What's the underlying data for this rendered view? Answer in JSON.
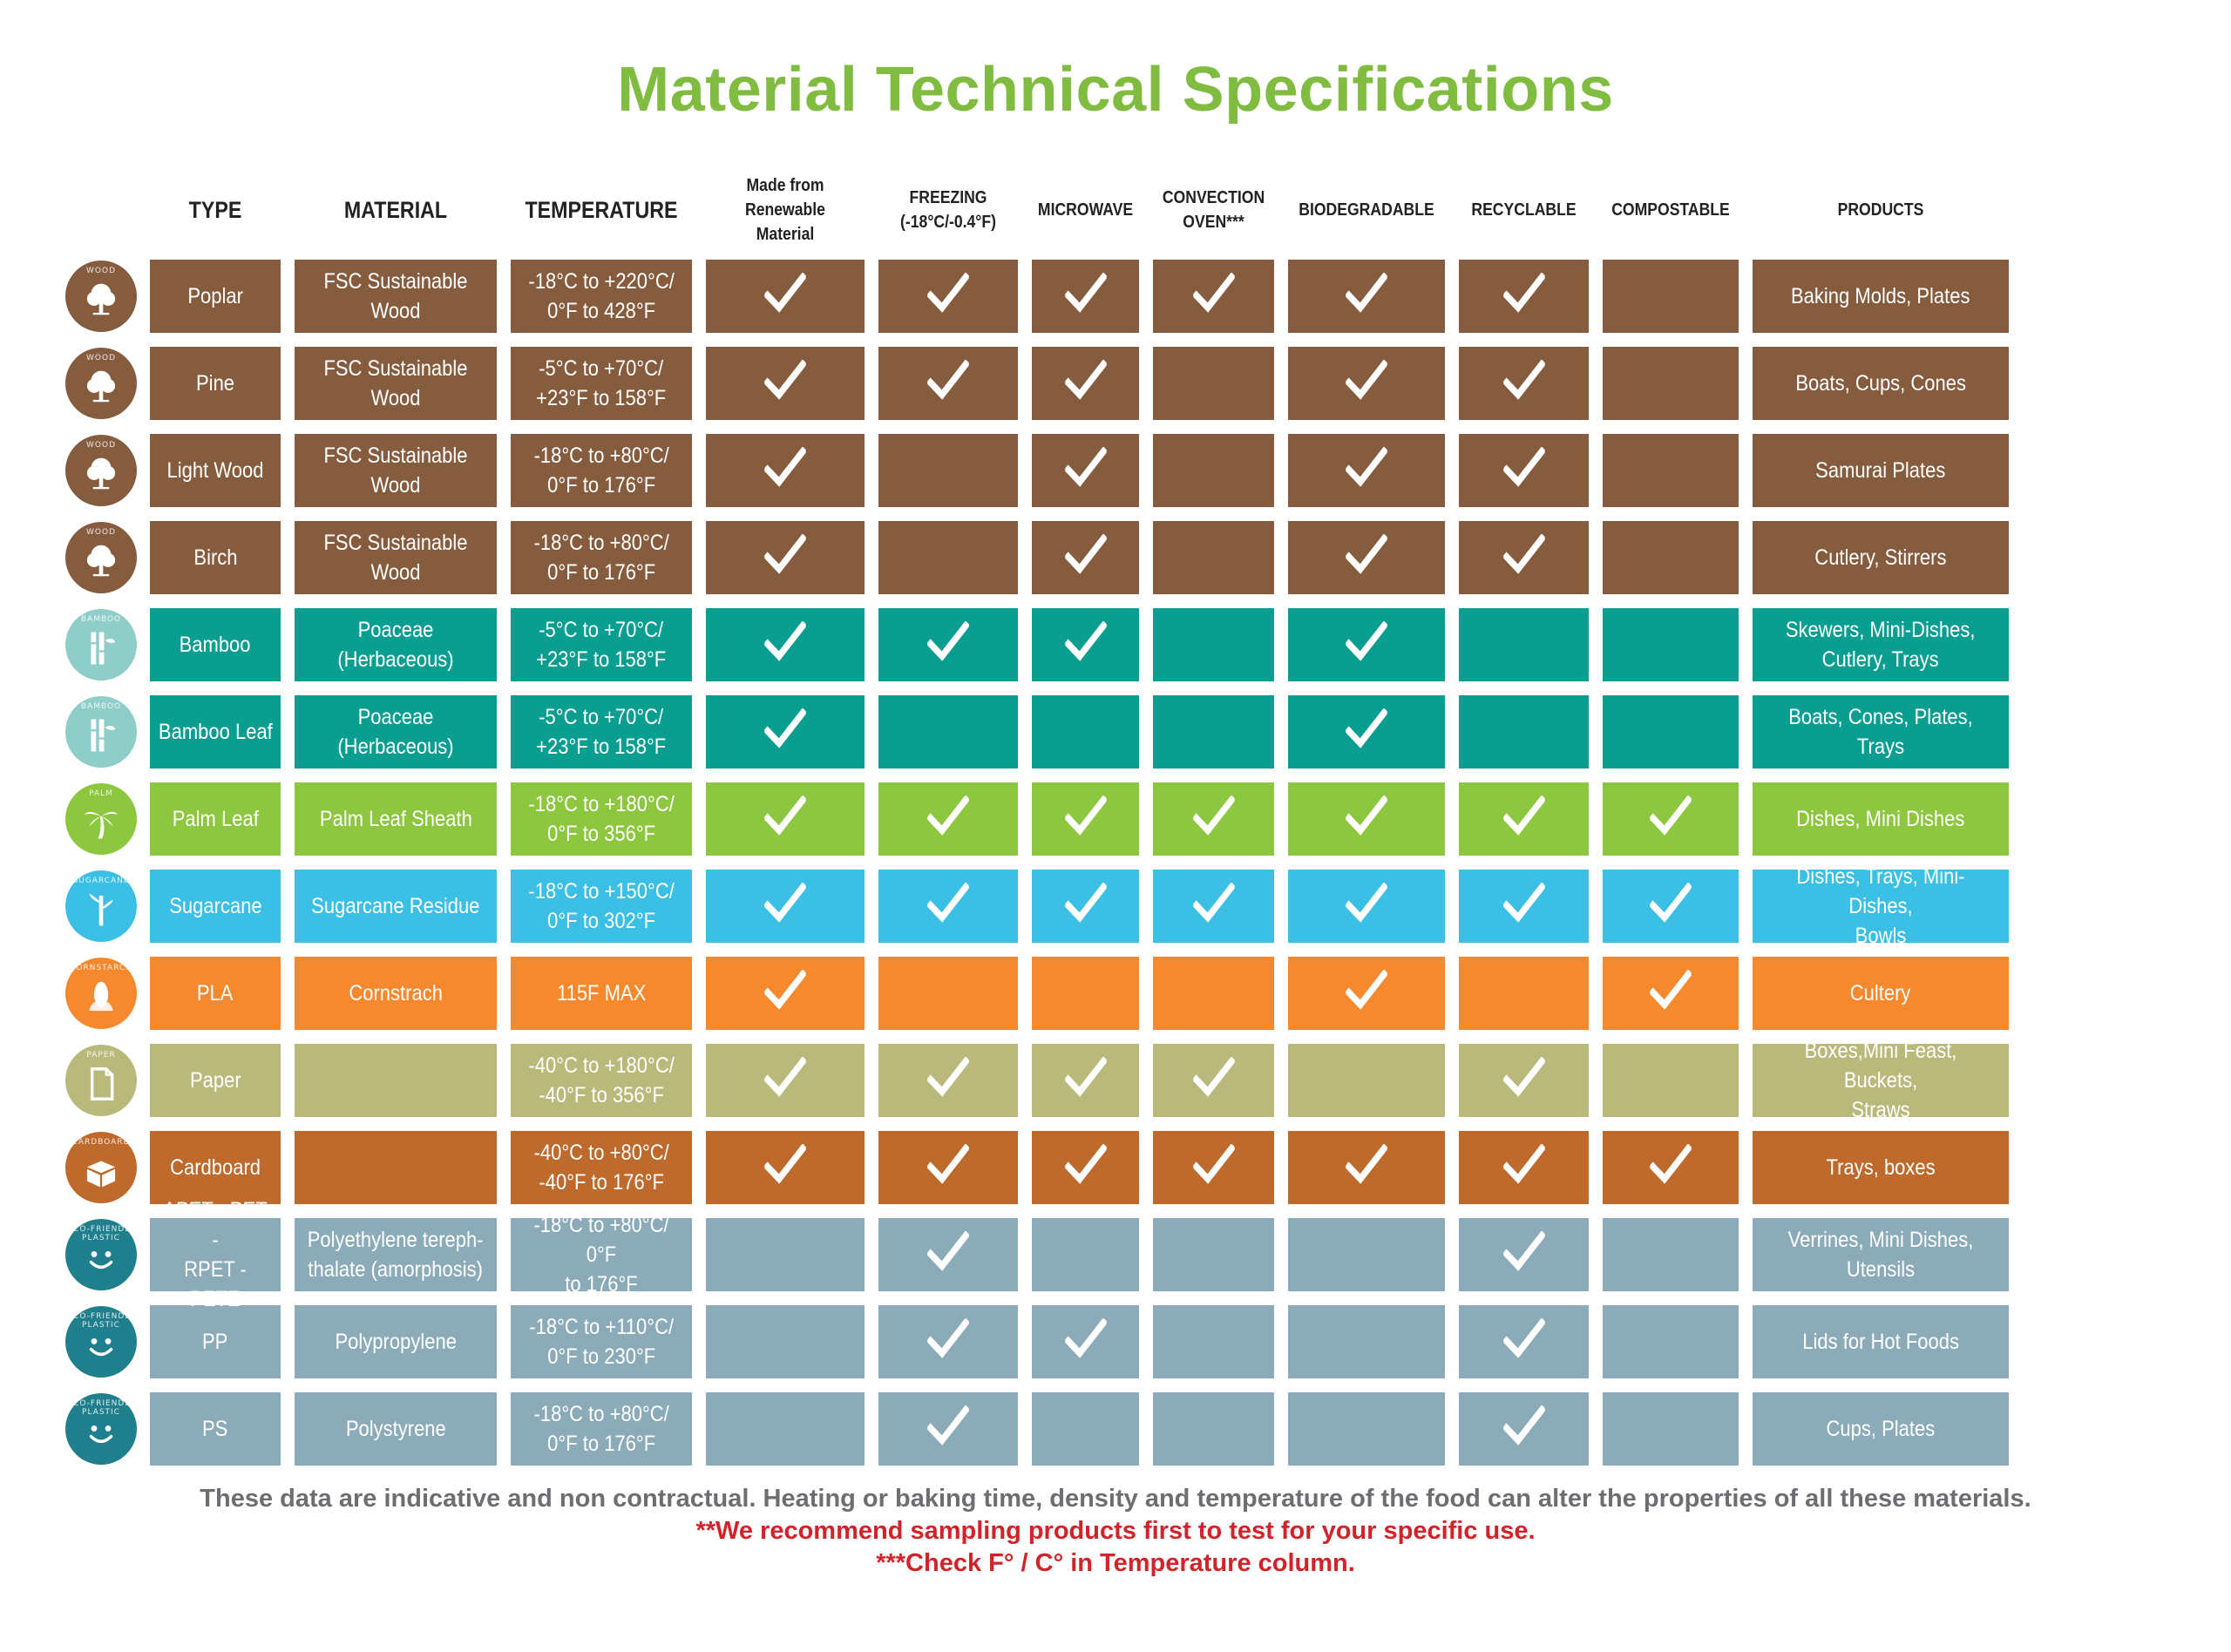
{
  "title": "Material Technical Specifications",
  "headers": {
    "type": "TYPE",
    "material": "MATERIAL",
    "temperature": "TEMPERATURE",
    "renewable": "Made from\nRenewable Material",
    "freezing": "FREEZING\n(-18°C/-0.4°F)",
    "microwave": "MICROWAVE",
    "convection": "CONVECTION\nOVEN***",
    "biodegradable": "BIODEGRADABLE",
    "recyclable": "RECYCLABLE",
    "compostable": "COMPOSTABLE",
    "products": "PRODUCTS"
  },
  "rows": [
    {
      "icon": "WOOD",
      "icon_name": "tree-icon",
      "color": "#865c3f",
      "icon_bg": "#865c3f",
      "type": "Poplar",
      "material": "FSC Sustainable Wood",
      "temperature": "-18°C to +220°C/\n0°F to 428°F",
      "checks": [
        true,
        true,
        true,
        true,
        true,
        true,
        false
      ],
      "products": "Baking Molds, Plates"
    },
    {
      "icon": "WOOD",
      "icon_name": "tree-icon",
      "color": "#865c3f",
      "icon_bg": "#865c3f",
      "type": "Pine",
      "material": "FSC Sustainable Wood",
      "temperature": "-5°C to +70°C/\n+23°F to 158°F",
      "checks": [
        true,
        true,
        true,
        false,
        true,
        true,
        false
      ],
      "products": "Boats, Cups, Cones"
    },
    {
      "icon": "WOOD",
      "icon_name": "tree-icon",
      "color": "#865c3f",
      "icon_bg": "#865c3f",
      "type": "Light Wood",
      "material": "FSC Sustainable Wood",
      "temperature": "-18°C to +80°C/\n0°F to 176°F",
      "checks": [
        true,
        false,
        true,
        false,
        true,
        true,
        false
      ],
      "products": "Samurai Plates"
    },
    {
      "icon": "WOOD",
      "icon_name": "tree-icon",
      "color": "#865c3f",
      "icon_bg": "#865c3f",
      "type": "Birch",
      "material": "FSC Sustainable Wood",
      "temperature": "-18°C to +80°C/\n0°F to 176°F",
      "checks": [
        true,
        false,
        true,
        false,
        true,
        true,
        false
      ],
      "products": "Cutlery, Stirrers"
    },
    {
      "icon": "BAMBOO",
      "icon_name": "bamboo-icon",
      "color": "#0a9e90",
      "icon_bg": "#8ecdc8",
      "type": "Bamboo",
      "material": "Poaceae (Herbaceous)",
      "temperature": "-5°C to +70°C/\n+23°F to 158°F",
      "checks": [
        true,
        true,
        true,
        false,
        true,
        false,
        false
      ],
      "products": "Skewers, Mini-Dishes,\nCutlery, Trays"
    },
    {
      "icon": "BAMBOO",
      "icon_name": "bamboo-icon",
      "color": "#0a9e90",
      "icon_bg": "#8ecdc8",
      "type": "Bamboo Leaf",
      "material": "Poaceae (Herbaceous)",
      "temperature": "-5°C to +70°C/\n+23°F to 158°F",
      "checks": [
        true,
        false,
        false,
        false,
        true,
        false,
        false
      ],
      "products": "Boats, Cones, Plates, Trays"
    },
    {
      "icon": "PALM",
      "icon_name": "palm-tree-icon",
      "color": "#8dc63f",
      "icon_bg": "#8dc63f",
      "type": "Palm Leaf",
      "material": "Palm Leaf Sheath",
      "temperature": "-18°C to +180°C/\n0°F to 356°F",
      "checks": [
        true,
        true,
        true,
        true,
        true,
        true,
        true
      ],
      "products": "Dishes, Mini Dishes"
    },
    {
      "icon": "SUGARCANE",
      "icon_name": "sugarcane-icon",
      "color": "#3cbfe4",
      "icon_bg": "#3cbfe4",
      "type": "Sugarcane",
      "material": "Sugarcane Residue",
      "temperature": "-18°C to +150°C/\n0°F to 302°F",
      "checks": [
        true,
        true,
        true,
        true,
        true,
        true,
        true
      ],
      "products": "Dishes, Trays, Mini-Dishes,\nBowls"
    },
    {
      "icon": "CORNSTARCH",
      "icon_name": "corn-icon",
      "color": "#f6892e",
      "icon_bg": "#f6892e",
      "type": "PLA",
      "material": "Cornstrach",
      "temperature": "115F MAX",
      "checks": [
        true,
        false,
        false,
        false,
        true,
        false,
        true
      ],
      "products": "Cultery"
    },
    {
      "icon": "PAPER",
      "icon_name": "paper-icon",
      "color": "#b9b97b",
      "icon_bg": "#b9b97b",
      "type": "Paper",
      "material": "",
      "temperature": "-40°C to +180°C/\n-40°F to 356°F",
      "checks": [
        true,
        true,
        true,
        true,
        false,
        true,
        false
      ],
      "products": "Boxes,Mini Feast, Buckets,\nStraws"
    },
    {
      "icon": "CARDBOARD",
      "icon_name": "cardboard-box-icon",
      "color": "#be6a2c",
      "icon_bg": "#be6a2c",
      "type": "Cardboard",
      "material": "",
      "temperature": "-40°C to +80°C/\n-40°F to 176°F",
      "checks": [
        true,
        true,
        true,
        true,
        true,
        true,
        true
      ],
      "products": "Trays, boxes"
    },
    {
      "icon": "ECO-FRIENDLY PLASTIC",
      "icon_name": "smiley-icon",
      "color": "#8babb8",
      "icon_bg": "#1f7f8c",
      "type": "APET - PET -\nRPET - PETE",
      "material": "Polyethylene tereph-\nthalate (amorphosis)",
      "temperature": "-18°C to +80°C/ 0°F\nto 176°F",
      "checks": [
        false,
        true,
        false,
        false,
        false,
        true,
        false
      ],
      "products": "Verrines, Mini Dishes, Utensils"
    },
    {
      "icon": "ECO-FRIENDLY PLASTIC",
      "icon_name": "smiley-icon",
      "color": "#8babb8",
      "icon_bg": "#1f7f8c",
      "type": "PP",
      "material": "Polypropylene",
      "temperature": "-18°C to +110°C/\n0°F to 230°F",
      "checks": [
        false,
        true,
        true,
        false,
        false,
        true,
        false
      ],
      "products": "Lids for Hot Foods"
    },
    {
      "icon": "ECO-FRIENDLY PLASTIC",
      "icon_name": "smiley-icon",
      "color": "#8babb8",
      "icon_bg": "#1f7f8c",
      "type": "PS",
      "material": "Polystyrene",
      "temperature": "-18°C to +80°C/\n0°F to 176°F",
      "checks": [
        false,
        true,
        false,
        false,
        false,
        true,
        false
      ],
      "products": "Cups, Plates"
    }
  ],
  "footer": {
    "line1": "These data are indicative and non contractual. Heating or baking time, density and temperature of the food can alter the properties of all these materials.",
    "line2": "**We recommend sampling products first to test for your specific use.",
    "line3": "***Check F° / C° in Temperature column."
  }
}
